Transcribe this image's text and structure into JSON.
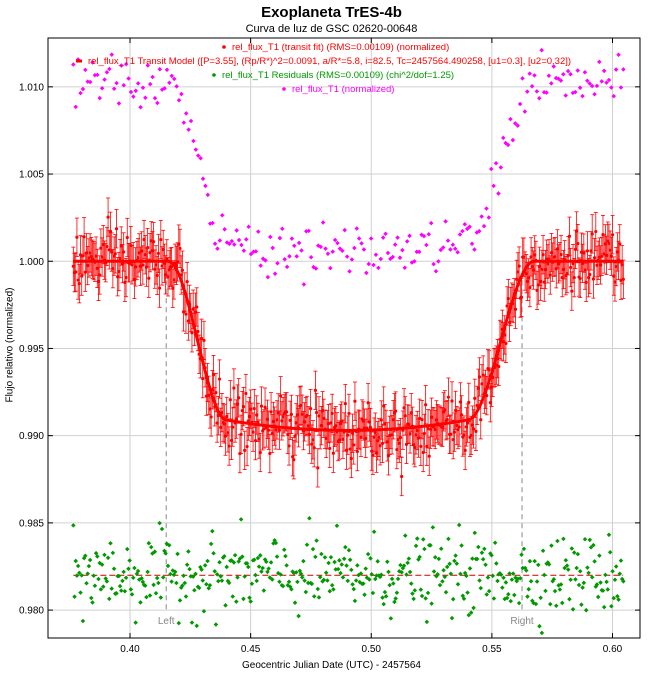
{
  "chart_data": {
    "type": "scatter",
    "title": "Exoplaneta TrES-4b",
    "subtitle": "Curva de luz de GSC 02620-00648",
    "xlabel": "Geocentric Julian Date (UTC) - 2457564",
    "ylabel": "Flujo relativo (normalized)",
    "xlim": [
      0.366,
      0.6114
    ],
    "ylim": [
      0.9784,
      1.0128
    ],
    "x_ticks": [
      "0.40",
      "0.45",
      "0.50",
      "0.55",
      "0.60"
    ],
    "x_tick_values": [
      0.4,
      0.45,
      0.5,
      0.55,
      0.6
    ],
    "y_ticks": [
      "0.980",
      "0.985",
      "0.990",
      "0.995",
      "1.000",
      "1.005",
      "1.010"
    ],
    "y_tick_values": [
      0.98,
      0.985,
      0.99,
      0.995,
      1.0,
      1.005,
      1.01
    ],
    "grid": true,
    "legend_position": "top-center",
    "legend": [
      {
        "label": "rel_flux_T1 (transit fit) (RMS=0.00109) (normalized)",
        "color": "#ff0000",
        "marker": "dot"
      },
      {
        "label": "rel_flux_T1 Transit Model ([P=3.55], (Rp/R*)^2=0.0091, a/R*=5.8, i=82.5, Tc=2457564.490258, [u1=0.3], [u2=0.32])",
        "color": "#ff0000",
        "marker": "line"
      },
      {
        "label": "rel_flux_T1 Residuals (RMS=0.00109) (chi^2/dof=1.25)",
        "color": "#009900",
        "marker": "dot"
      },
      {
        "label": "rel_flux_T1 (normalized)",
        "color": "#ff00ff",
        "marker": "dot"
      }
    ],
    "markers": [
      {
        "label": "Left",
        "x": 0.415
      },
      {
        "label": "Right",
        "x": 0.5625
      }
    ],
    "transit_model": {
      "baseline": 1.0,
      "depth": 0.0091,
      "ingress_start": 0.416,
      "ingress_end": 0.44,
      "egress_start": 0.54,
      "egress_end": 0.5675,
      "bottom_min": 0.9906
    },
    "series": [
      {
        "name": "rel_flux_T1 (transit fit) (RMS=0.00109) (normalized)",
        "color": "#ff0000",
        "with_error_bars": true,
        "error_bar": 0.0011,
        "x_start": 0.3765,
        "x_end": 0.6045,
        "n_points": 460,
        "scatter": 0.00085
      },
      {
        "name": "rel_flux_T1 (normalized)",
        "color": "#ff00ff",
        "offset": 0.0102,
        "x_start": 0.3765,
        "x_end": 0.6045,
        "n_points": 230,
        "scatter": 0.0007
      },
      {
        "name": "rel_flux_T1 Residuals (RMS=0.00109) (chi^2/dof=1.25)",
        "color": "#009900",
        "center": 0.982,
        "x_start": 0.3765,
        "x_end": 0.6045,
        "n_points": 460,
        "scatter": 0.0011
      }
    ],
    "residual_zero_line": 0.982
  }
}
